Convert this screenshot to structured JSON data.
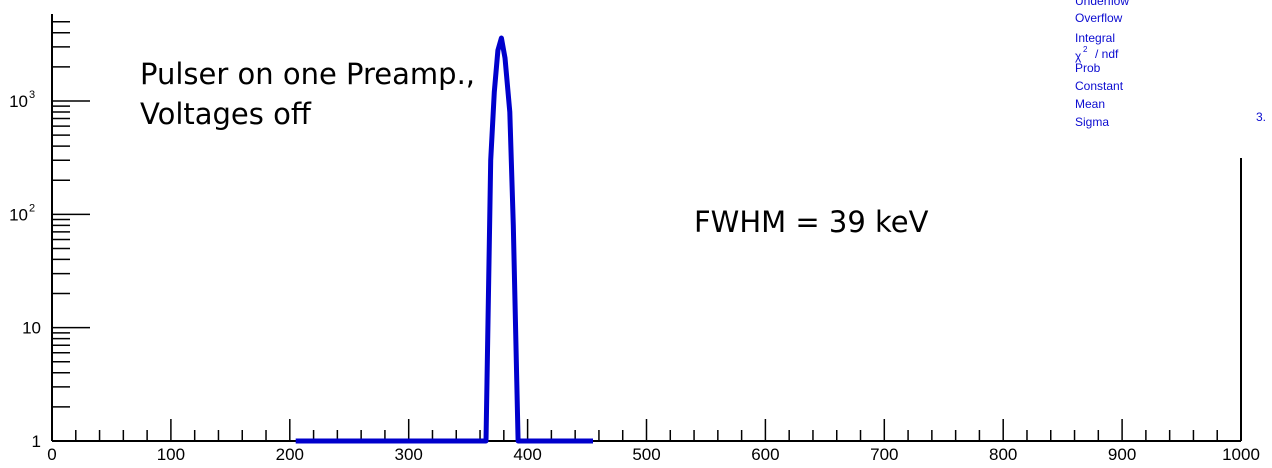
{
  "chart_data": {
    "type": "line",
    "title": "",
    "xlabel": "",
    "ylabel": "",
    "xlim": [
      0,
      1000
    ],
    "ylim": [
      1,
      5000
    ],
    "y_scale": "log",
    "grid": false,
    "x_tick_labels": [
      "0",
      "100",
      "200",
      "300",
      "400",
      "500",
      "600",
      "700",
      "800",
      "900",
      "1000"
    ],
    "y_tick_labels": [
      {
        "value": 1,
        "base": "1",
        "exp": ""
      },
      {
        "value": 10,
        "base": "10",
        "exp": ""
      },
      {
        "value": 100,
        "base": "10",
        "exp": "2"
      },
      {
        "value": 1000,
        "base": "10",
        "exp": "3"
      }
    ],
    "series": [
      {
        "color": "#0000cc",
        "x": [
          205,
          365,
          369,
          372,
          375,
          378,
          381,
          385,
          388,
          392,
          455
        ],
        "y": [
          1,
          1,
          300,
          1200,
          2800,
          3600,
          2400,
          800,
          80,
          1,
          1
        ]
      }
    ],
    "annotations": {
      "line1": "Pulser on one Preamp.,",
      "line2": "Voltages off",
      "fwhm": "FWHM = 39 keV"
    },
    "stats_box": {
      "labels": [
        "Underflow",
        "Overflow",
        "Integral",
        "χ",
        "/ ndf",
        "Prob",
        "Constant",
        "Mean",
        "Sigma"
      ],
      "chi_exp": "2",
      "partial_value": "3."
    }
  }
}
